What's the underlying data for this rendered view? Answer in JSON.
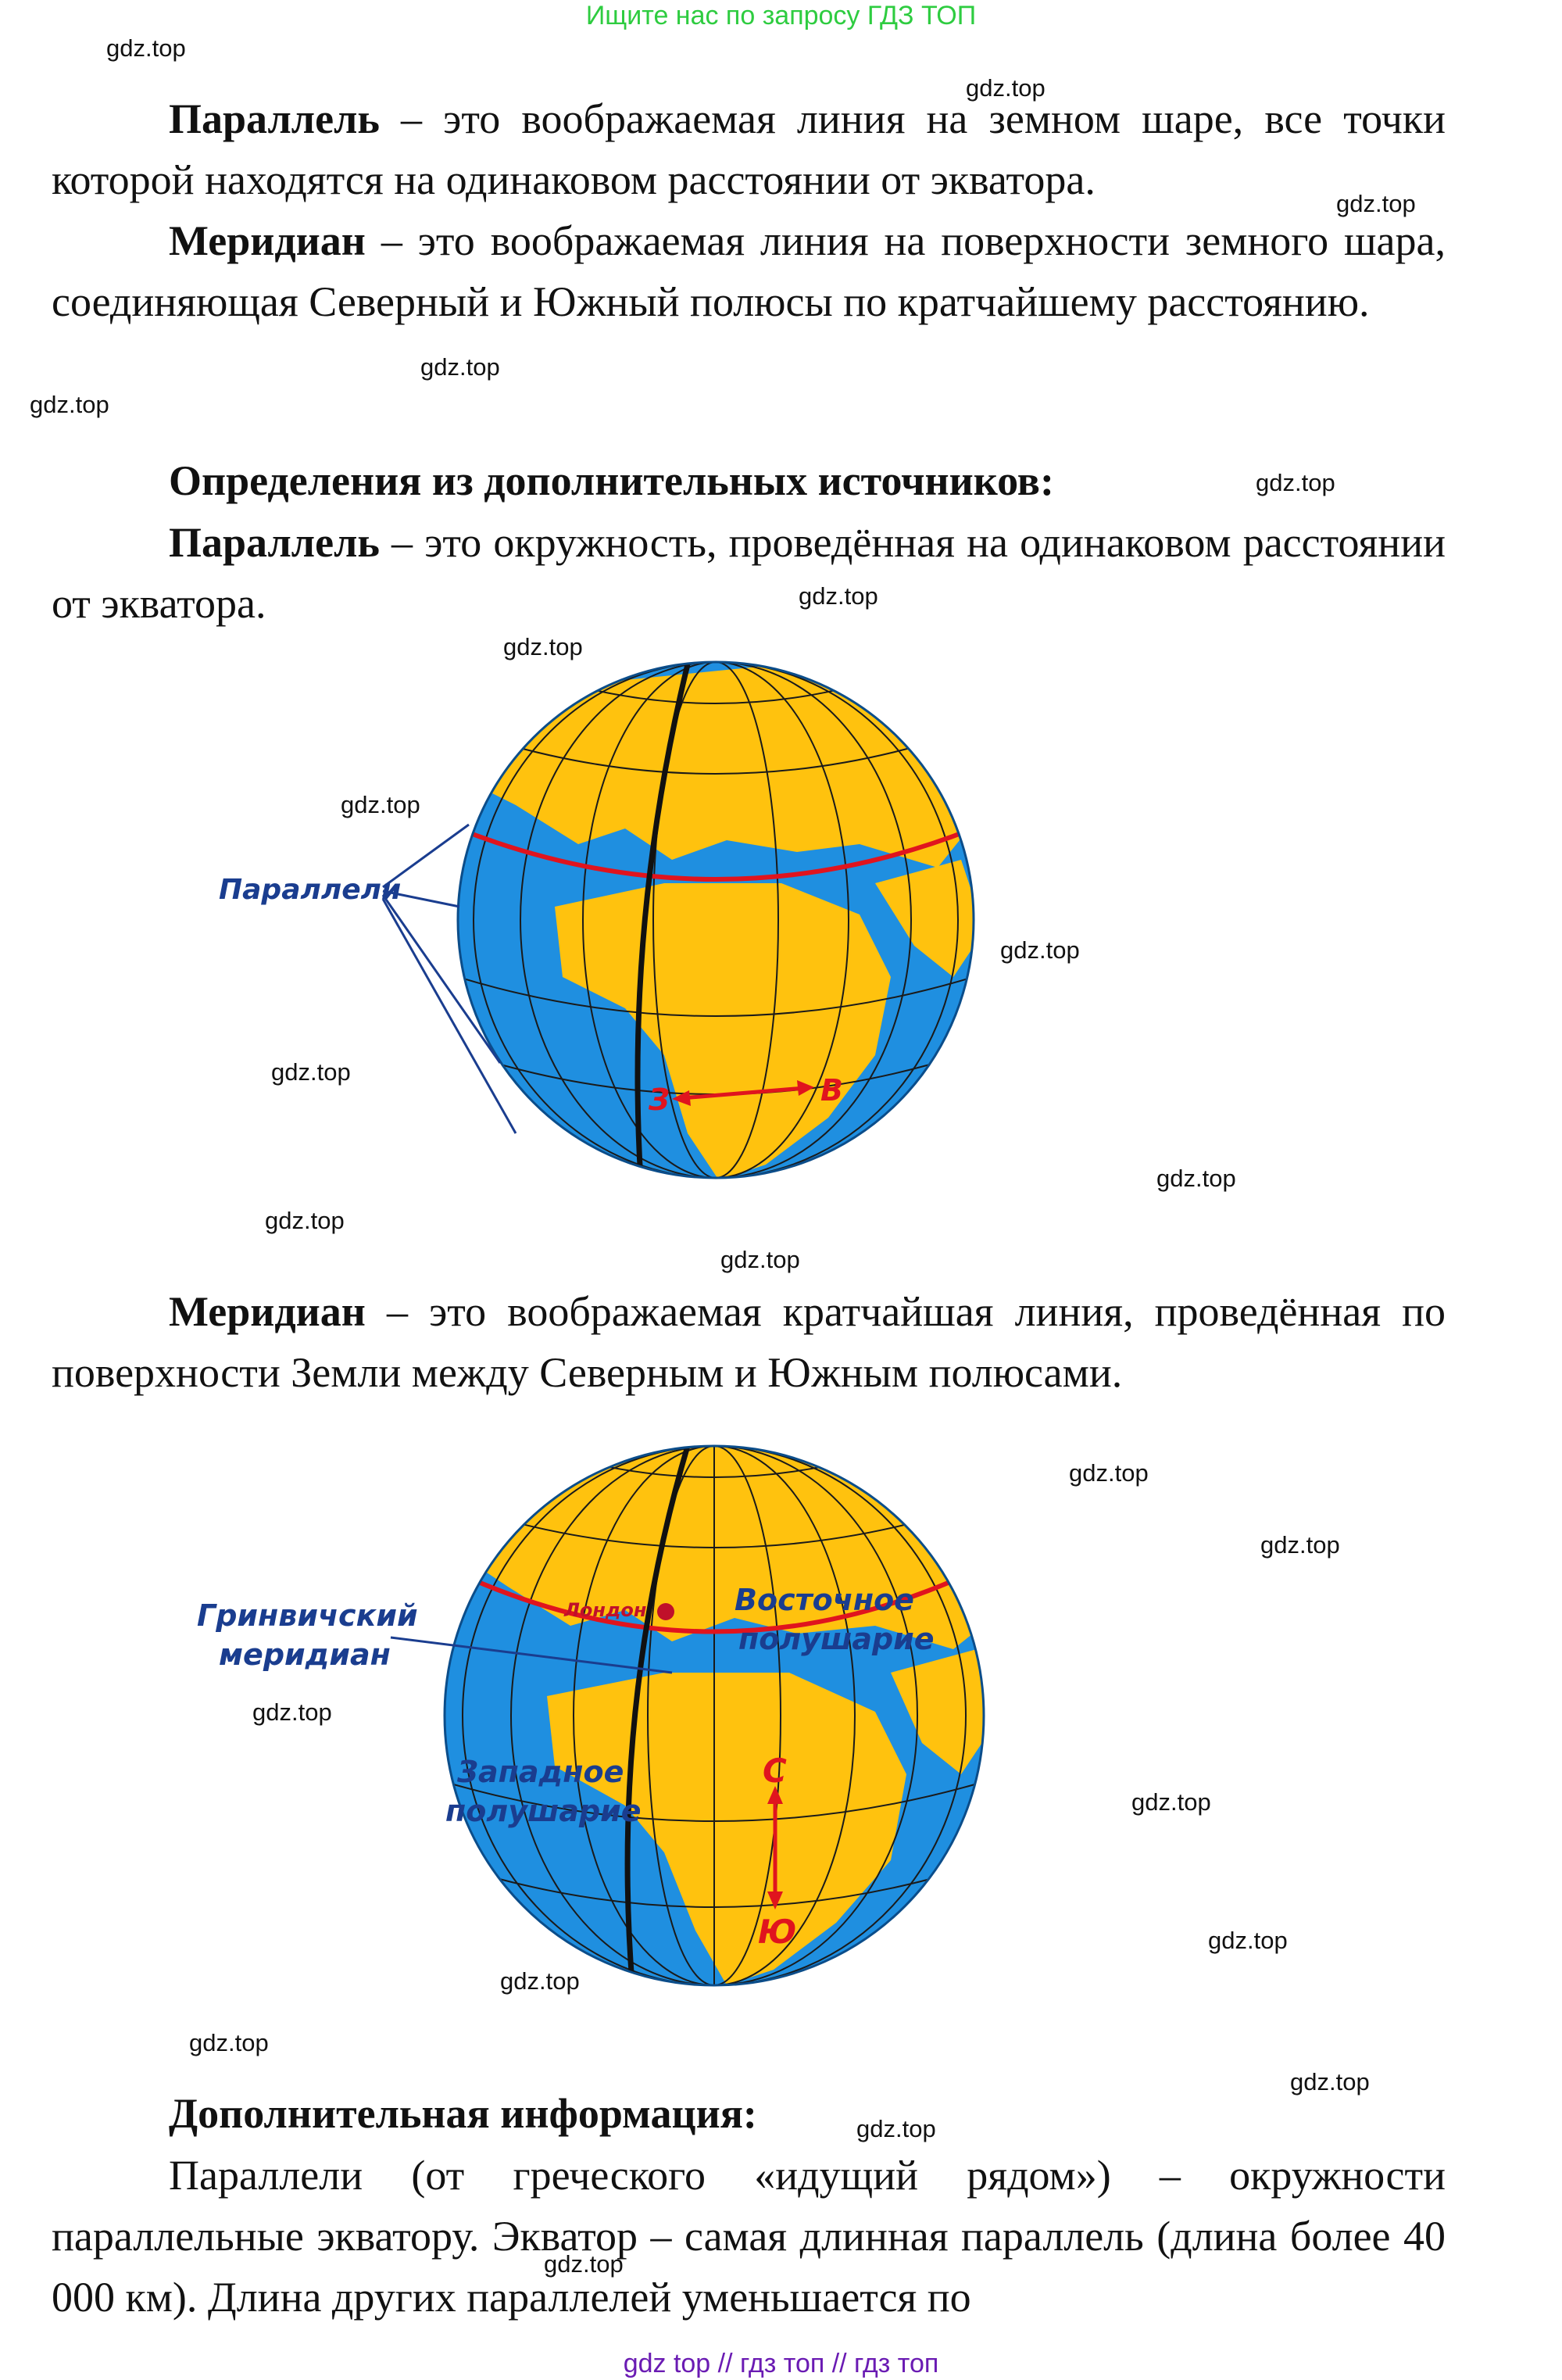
{
  "banner": "Ищите нас по запросу ГДЗ ТОП",
  "watermark": "gdz.top",
  "footer": "gdz top  //  гдз топ  //  гдз топ",
  "p1": {
    "term": "Параллель",
    "text": " – это воображаемая линия на земном шаре, все точки которой находятся на одинаковом расстоянии от экватора."
  },
  "p2": {
    "term": "Меридиан",
    "text": " – это воображаемая линия на поверхности земного шара, соединяющая Северный и Южный полюсы по кратчайшему расстоянию."
  },
  "heading1": "Определения из дополнительных источников:",
  "p3": {
    "term": "Параллель",
    "text": " – это окружность, проведённая на одинаковом расстоянии от экватора."
  },
  "figure1": {
    "label_parallels": "Параллели",
    "label_west": "З",
    "label_east": "В"
  },
  "p4": {
    "term": "Меридиан",
    "text": " – это воображаемая кратчайшая линия, проведённая по поверхности Земли между Северным и Южным полюсами."
  },
  "figure2": {
    "label_greenwich_1": "Гринвичский",
    "label_greenwich_2": "меридиан",
    "label_london": "Лондон",
    "label_east_hemi_1": "Восточное",
    "label_east_hemi_2": "полушарие",
    "label_west_hemi_1": "Западное",
    "label_west_hemi_2": "полушарие",
    "label_north": "С",
    "label_south": "Ю"
  },
  "heading2": "Дополнительная информация:",
  "p5": {
    "text": "Параллели (от греческого «идущий рядом») – окружности параллельные экватору. Экватор – самая длинная параллель (длина более 40 000 км). Длина других параллелей уменьшается по"
  },
  "colors": {
    "ocean": "#1f8fe0",
    "land": "#ffc20e",
    "highlight": "#e0141e",
    "label_blue": "#1a3d8f",
    "banner": "#2ecc40",
    "footer": "#6a1bb3"
  }
}
